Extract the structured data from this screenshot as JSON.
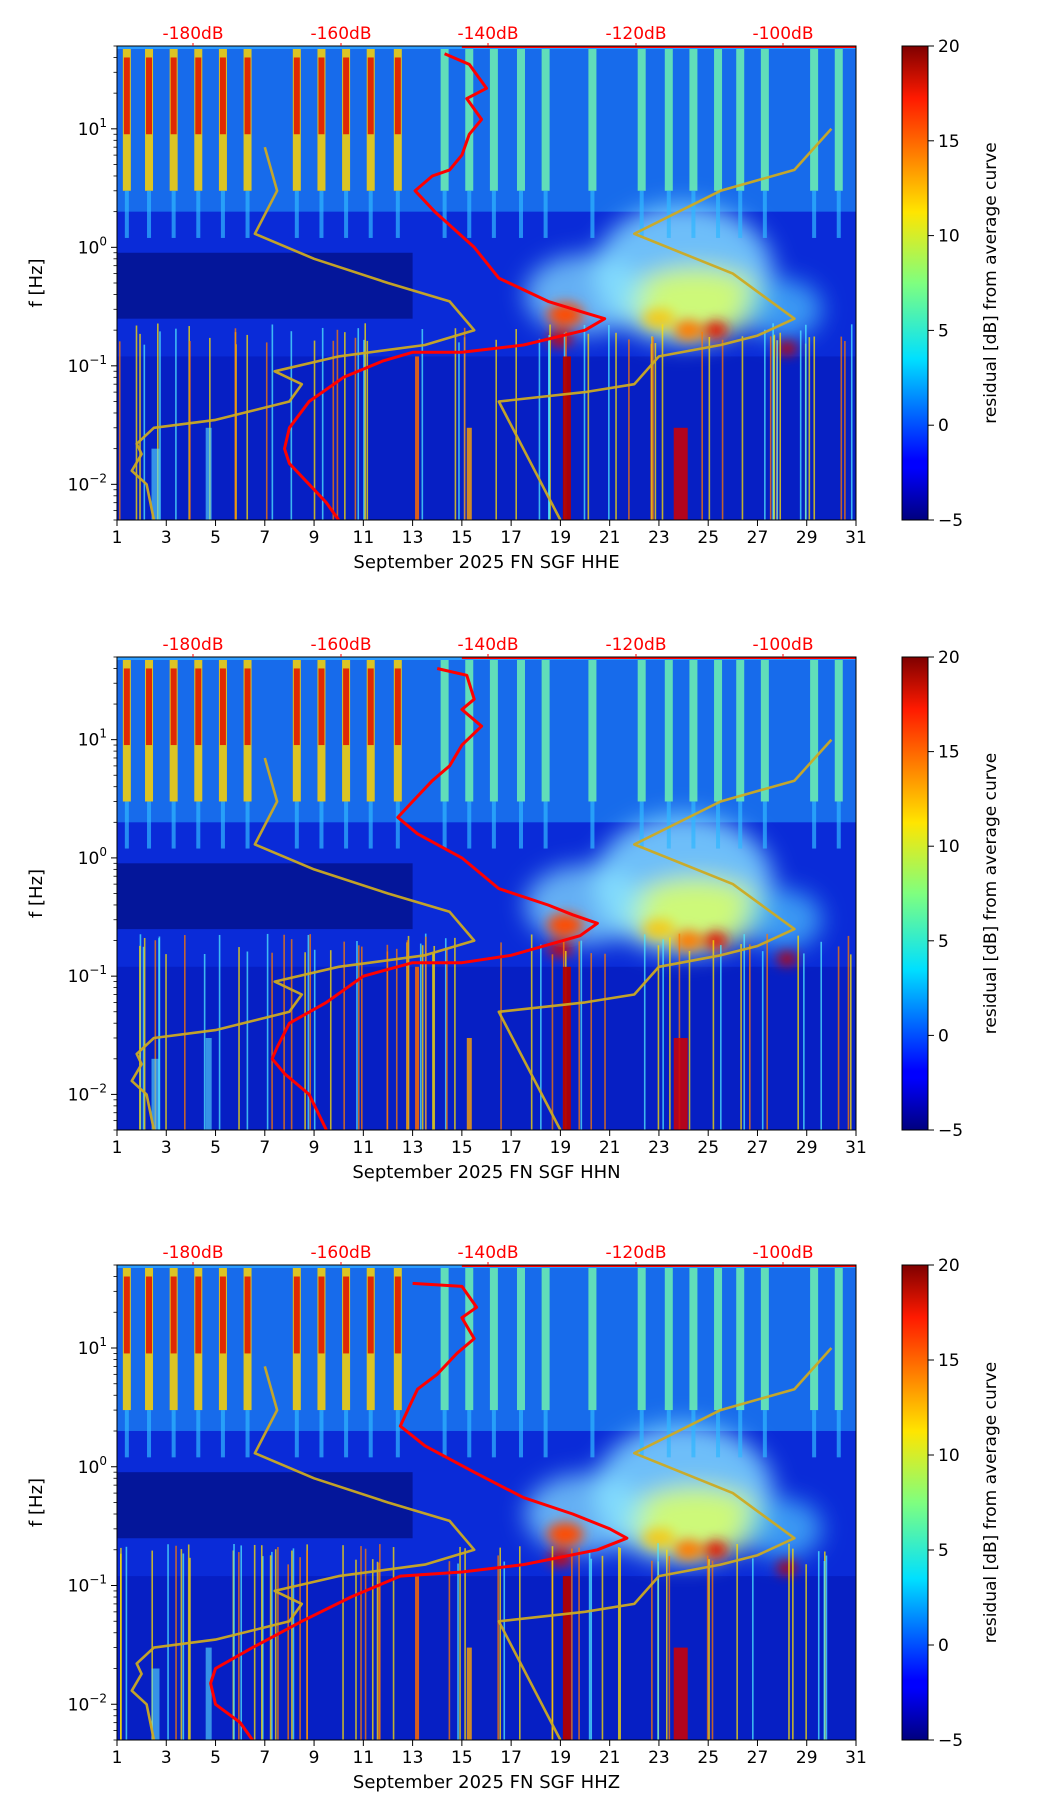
{
  "chart_data": [
    {
      "type": "heatmap",
      "xlabel": "September 2025 FN SGF  HHE",
      "ylabel": "f [Hz]",
      "colorbar_label": "residual [dB] from average curve",
      "x_ticks": [
        "1",
        "3",
        "5",
        "7",
        "9",
        "11",
        "13",
        "15",
        "17",
        "19",
        "21",
        "23",
        "25",
        "27",
        "29",
        "31"
      ],
      "y_ticks": [
        "10^-2",
        "10^-1",
        "10^0",
        "10^1"
      ],
      "top_axis_ticks": [
        "-180dB",
        "-160dB",
        "-140dB",
        "-120dB",
        "-100dB"
      ],
      "colorbar_ticks": [
        "20",
        "15",
        "10",
        "5",
        "0",
        "−5"
      ],
      "xlim": [
        1,
        31
      ],
      "ylim": [
        0.005,
        50
      ],
      "clim": [
        -5,
        20
      ],
      "colormap": "jet",
      "y_scale": "log",
      "series": [
        {
          "color": "#ff0000",
          "axis": "top (dB)",
          "points": [
            [
              14.3,
              43
            ],
            [
              15.3,
              35
            ],
            [
              16.0,
              22
            ],
            [
              15.2,
              18
            ],
            [
              15.8,
              12
            ],
            [
              15.3,
              9
            ],
            [
              15.0,
              6
            ],
            [
              14.5,
              4.5
            ],
            [
              13.8,
              4
            ],
            [
              13.1,
              3.0
            ],
            [
              13.9,
              2.0
            ],
            [
              15.5,
              1.0
            ],
            [
              16.5,
              0.55
            ],
            [
              18.5,
              0.35
            ],
            [
              20.0,
              0.28
            ],
            [
              20.8,
              0.25
            ],
            [
              20.0,
              0.2
            ],
            [
              17.5,
              0.15
            ],
            [
              15.0,
              0.13
            ],
            [
              13.0,
              0.13
            ],
            [
              11.8,
              0.11
            ],
            [
              10.2,
              0.08
            ],
            [
              8.8,
              0.05
            ],
            [
              8.0,
              0.03
            ],
            [
              7.8,
              0.02
            ],
            [
              8.0,
              0.015
            ],
            [
              8.8,
              0.01
            ],
            [
              9.5,
              0.007
            ],
            [
              10.0,
              0.005
            ]
          ]
        },
        {
          "color": "#ccaa22",
          "points": [
            [
              7.0,
              7
            ],
            [
              7.5,
              3
            ],
            [
              6.6,
              1.3
            ],
            [
              9.0,
              0.8
            ],
            [
              12.0,
              0.5
            ],
            [
              14.5,
              0.35
            ],
            [
              15.5,
              0.2
            ],
            [
              13.5,
              0.15
            ],
            [
              10.0,
              0.12
            ],
            [
              7.4,
              0.09
            ],
            [
              8.5,
              0.07
            ],
            [
              8.0,
              0.05
            ],
            [
              5.0,
              0.035
            ],
            [
              2.5,
              0.03
            ],
            [
              1.8,
              0.022
            ],
            [
              2.0,
              0.018
            ],
            [
              1.6,
              0.013
            ],
            [
              2.2,
              0.01
            ],
            [
              2.5,
              0.005
            ]
          ]
        },
        {
          "color": "#ccaa22",
          "points": [
            [
              30.0,
              10
            ],
            [
              28.5,
              4.5
            ],
            [
              25.5,
              3.0
            ],
            [
              22.0,
              1.3
            ],
            [
              26.0,
              0.6
            ],
            [
              28.5,
              0.25
            ],
            [
              27.0,
              0.18
            ],
            [
              25.5,
              0.15
            ],
            [
              23.0,
              0.12
            ],
            [
              22.0,
              0.07
            ],
            [
              20.0,
              0.06
            ],
            [
              16.5,
              0.05
            ],
            [
              19.0,
              0.005
            ]
          ]
        }
      ]
    },
    {
      "type": "heatmap",
      "xlabel": "September 2025 FN SGF  HHN",
      "ylabel": "f [Hz]",
      "colorbar_label": "residual [dB] from average curve",
      "x_ticks": [
        "1",
        "3",
        "5",
        "7",
        "9",
        "11",
        "13",
        "15",
        "17",
        "19",
        "21",
        "23",
        "25",
        "27",
        "29",
        "31"
      ],
      "y_ticks": [
        "10^-2",
        "10^-1",
        "10^0",
        "10^1"
      ],
      "top_axis_ticks": [
        "-180dB",
        "-160dB",
        "-140dB",
        "-120dB",
        "-100dB"
      ],
      "colorbar_ticks": [
        "20",
        "15",
        "10",
        "5",
        "0",
        "−5"
      ],
      "xlim": [
        1,
        31
      ],
      "ylim": [
        0.005,
        50
      ],
      "clim": [
        -5,
        20
      ],
      "colormap": "jet",
      "y_scale": "log",
      "series": [
        {
          "color": "#ff0000",
          "axis": "top (dB)",
          "points": [
            [
              14.0,
              40
            ],
            [
              15.2,
              35
            ],
            [
              15.5,
              22
            ],
            [
              15.0,
              18
            ],
            [
              15.8,
              13
            ],
            [
              15.0,
              9
            ],
            [
              14.5,
              6
            ],
            [
              13.8,
              4.5
            ],
            [
              13.0,
              3
            ],
            [
              12.4,
              2.2
            ],
            [
              13.2,
              1.6
            ],
            [
              15.0,
              1.0
            ],
            [
              16.5,
              0.55
            ],
            [
              18.5,
              0.4
            ],
            [
              19.5,
              0.33
            ],
            [
              20.5,
              0.28
            ],
            [
              19.8,
              0.22
            ],
            [
              17.0,
              0.15
            ],
            [
              15.0,
              0.13
            ],
            [
              13.0,
              0.13
            ],
            [
              11.0,
              0.1
            ],
            [
              9.5,
              0.06
            ],
            [
              8.0,
              0.04
            ],
            [
              7.5,
              0.025
            ],
            [
              7.3,
              0.02
            ],
            [
              7.8,
              0.015
            ],
            [
              8.8,
              0.01
            ],
            [
              9.5,
              0.005
            ]
          ]
        },
        {
          "color": "#ccaa22",
          "points": [
            [
              7.0,
              7
            ],
            [
              7.5,
              3
            ],
            [
              6.6,
              1.3
            ],
            [
              9.0,
              0.8
            ],
            [
              12.0,
              0.5
            ],
            [
              14.5,
              0.35
            ],
            [
              15.5,
              0.2
            ],
            [
              13.5,
              0.15
            ],
            [
              10.0,
              0.12
            ],
            [
              7.4,
              0.09
            ],
            [
              8.5,
              0.07
            ],
            [
              8.0,
              0.05
            ],
            [
              5.0,
              0.035
            ],
            [
              2.5,
              0.03
            ],
            [
              1.8,
              0.022
            ],
            [
              2.0,
              0.018
            ],
            [
              1.6,
              0.013
            ],
            [
              2.2,
              0.01
            ],
            [
              2.5,
              0.005
            ]
          ]
        },
        {
          "color": "#ccaa22",
          "points": [
            [
              30.0,
              10
            ],
            [
              28.5,
              4.5
            ],
            [
              25.5,
              3.0
            ],
            [
              22.0,
              1.3
            ],
            [
              26.0,
              0.6
            ],
            [
              28.5,
              0.25
            ],
            [
              27.0,
              0.18
            ],
            [
              25.5,
              0.15
            ],
            [
              23.0,
              0.12
            ],
            [
              22.0,
              0.07
            ],
            [
              20.0,
              0.06
            ],
            [
              16.5,
              0.05
            ],
            [
              19.0,
              0.005
            ]
          ]
        }
      ]
    },
    {
      "type": "heatmap",
      "xlabel": "September 2025 FN SGF  HHZ",
      "ylabel": "f [Hz]",
      "colorbar_label": "residual [dB] from average curve",
      "x_ticks": [
        "1",
        "3",
        "5",
        "7",
        "9",
        "11",
        "13",
        "15",
        "17",
        "19",
        "21",
        "23",
        "25",
        "27",
        "29",
        "31"
      ],
      "y_ticks": [
        "10^-2",
        "10^-1",
        "10^0",
        "10^1"
      ],
      "top_axis_ticks": [
        "-180dB",
        "-160dB",
        "-140dB",
        "-120dB",
        "-100dB"
      ],
      "colorbar_ticks": [
        "20",
        "15",
        "10",
        "5",
        "0",
        "−5"
      ],
      "xlim": [
        1,
        31
      ],
      "ylim": [
        0.005,
        50
      ],
      "clim": [
        -5,
        20
      ],
      "colormap": "jet",
      "y_scale": "log",
      "series": [
        {
          "color": "#ff0000",
          "axis": "top (dB)",
          "points": [
            [
              13.0,
              35
            ],
            [
              15.0,
              33
            ],
            [
              15.6,
              22
            ],
            [
              15.0,
              18
            ],
            [
              15.5,
              12
            ],
            [
              14.8,
              9
            ],
            [
              14.0,
              6
            ],
            [
              13.2,
              4.5
            ],
            [
              12.8,
              3
            ],
            [
              12.5,
              2.2
            ],
            [
              13.5,
              1.5
            ],
            [
              15.5,
              0.9
            ],
            [
              17.5,
              0.55
            ],
            [
              19.5,
              0.4
            ],
            [
              21.0,
              0.3
            ],
            [
              21.7,
              0.25
            ],
            [
              20.5,
              0.2
            ],
            [
              17.5,
              0.15
            ],
            [
              15.0,
              0.13
            ],
            [
              12.5,
              0.12
            ],
            [
              10.5,
              0.08
            ],
            [
              8.5,
              0.05
            ],
            [
              6.5,
              0.03
            ],
            [
              5.0,
              0.02
            ],
            [
              4.8,
              0.015
            ],
            [
              5.0,
              0.01
            ],
            [
              6.0,
              0.007
            ],
            [
              6.5,
              0.005
            ]
          ]
        },
        {
          "color": "#ccaa22",
          "points": [
            [
              7.0,
              7
            ],
            [
              7.5,
              3
            ],
            [
              6.6,
              1.3
            ],
            [
              9.0,
              0.8
            ],
            [
              12.0,
              0.5
            ],
            [
              14.5,
              0.35
            ],
            [
              15.5,
              0.2
            ],
            [
              13.5,
              0.15
            ],
            [
              10.0,
              0.12
            ],
            [
              7.4,
              0.09
            ],
            [
              8.5,
              0.07
            ],
            [
              8.0,
              0.05
            ],
            [
              5.0,
              0.035
            ],
            [
              2.5,
              0.03
            ],
            [
              1.8,
              0.022
            ],
            [
              2.0,
              0.018
            ],
            [
              1.6,
              0.013
            ],
            [
              2.2,
              0.01
            ],
            [
              2.5,
              0.005
            ]
          ]
        },
        {
          "color": "#ccaa22",
          "points": [
            [
              30.0,
              10
            ],
            [
              28.5,
              4.5
            ],
            [
              25.5,
              3.0
            ],
            [
              22.0,
              1.3
            ],
            [
              26.0,
              0.6
            ],
            [
              28.5,
              0.25
            ],
            [
              27.0,
              0.18
            ],
            [
              25.5,
              0.15
            ],
            [
              23.0,
              0.12
            ],
            [
              22.0,
              0.07
            ],
            [
              20.0,
              0.06
            ],
            [
              16.5,
              0.05
            ],
            [
              19.0,
              0.005
            ]
          ]
        }
      ]
    }
  ]
}
